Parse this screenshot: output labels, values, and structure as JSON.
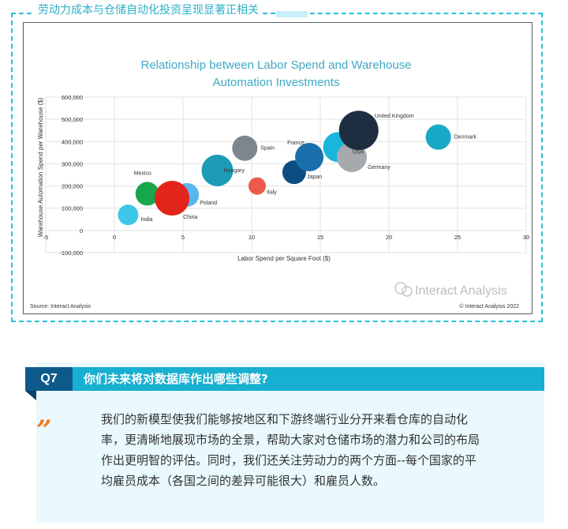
{
  "section_title": "劳动力成本与仓储自动化投资呈现显著正相关",
  "chart_data": {
    "type": "scatter",
    "title": "Relationship between Labor Spend and Warehouse Automation Investments",
    "xlabel": "Labor Spend per Square Foot ($)",
    "ylabel": "Warehouse Automation Spend per Warehouse ($)",
    "xlim": [
      -5,
      30
    ],
    "ylim": [
      -100000,
      600000
    ],
    "x_ticks": [
      -5,
      0,
      5,
      10,
      15,
      20,
      25,
      30
    ],
    "x_tick_labels": [
      "-5",
      "0",
      "5",
      "10",
      "15",
      "20",
      "25",
      "30"
    ],
    "y_ticks": [
      -100000,
      0,
      100000,
      200000,
      300000,
      400000,
      500000,
      600000
    ],
    "y_tick_labels": [
      "-100,000",
      "0",
      "100,000",
      "200,000",
      "300,000",
      "400,000",
      "500,000",
      "600,000"
    ],
    "grid": true,
    "source": "Source: Interact Analysis",
    "copyright": "© Interact Analysis 2022",
    "watermark": "Interact Analysis",
    "points": [
      {
        "label": "India",
        "x": 1,
        "y": 70000,
        "size": 13,
        "color": "#3ec7e8"
      },
      {
        "label": "Mexico",
        "x": 2.4,
        "y": 165000,
        "size": 15,
        "color": "#1aa64a"
      },
      {
        "label": "Poland",
        "x": 5.3,
        "y": 160000,
        "size": 15,
        "color": "#5ab7ee"
      },
      {
        "label": "China",
        "x": 4.2,
        "y": 145000,
        "size": 22,
        "color": "#e3241b"
      },
      {
        "label": "Italy",
        "x": 10.4,
        "y": 200000,
        "size": 11,
        "color": "#ee5a4a"
      },
      {
        "label": "Hungary",
        "x": 7.5,
        "y": 270000,
        "size": 20,
        "color": "#1d9bb6"
      },
      {
        "label": "Spain",
        "x": 9.5,
        "y": 370000,
        "size": 16,
        "color": "#7d868c"
      },
      {
        "label": "Japan",
        "x": 13.1,
        "y": 262000,
        "size": 15,
        "color": "#0d4d84"
      },
      {
        "label": "France",
        "x": 14.2,
        "y": 330000,
        "size": 18,
        "color": "#1a70aa"
      },
      {
        "label": "USA",
        "x": 16.3,
        "y": 375000,
        "size": 19,
        "color": "#19b6dc"
      },
      {
        "label": "Germany",
        "x": 17.3,
        "y": 330000,
        "size": 19,
        "color": "#a6aaad"
      },
      {
        "label": "United Kingdom",
        "x": 17.8,
        "y": 450000,
        "size": 25,
        "color": "#1e2d40"
      },
      {
        "label": "Denmark",
        "x": 23.6,
        "y": 420000,
        "size": 16,
        "color": "#17a9c6"
      }
    ]
  },
  "question": {
    "badge": "Q7",
    "text": "你们未来将对数据库作出哪些调整?"
  },
  "answer": {
    "quote_mark": "”",
    "lines": [
      "我们的新模型使我们能够按地区和下游终端行业分开来看仓库的自动化",
      "率，更清晰地展现市场的全景，帮助大家对仓储市场的潜力和公司的布局",
      "作出更明智的评估。同时，我们还关注劳动力的两个方面--每个国家的平",
      "均雇员成本（各国之间的差异可能很大）和雇员人数。"
    ]
  }
}
